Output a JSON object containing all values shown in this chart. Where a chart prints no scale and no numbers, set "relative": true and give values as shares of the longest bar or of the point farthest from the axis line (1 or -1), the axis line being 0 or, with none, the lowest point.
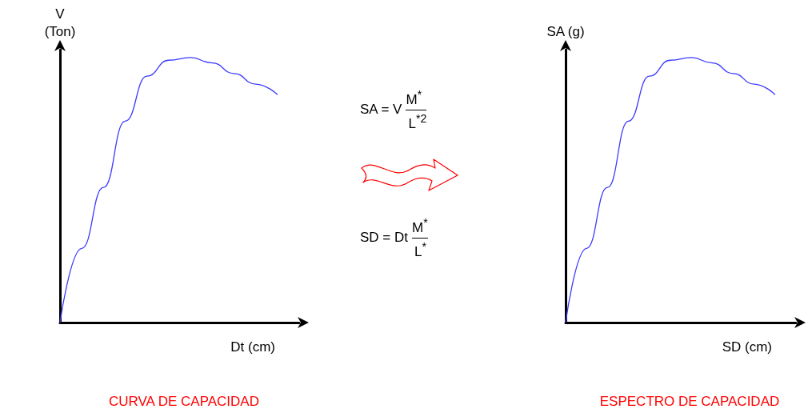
{
  "chart_data": [
    {
      "type": "line",
      "title": "CURVA DE CAPACIDAD",
      "xlabel": "Dt (cm)",
      "ylabel": "V\n(Ton)",
      "relative": true,
      "marker": "none",
      "categories": [
        null,
        null,
        null,
        null,
        null,
        null,
        null,
        null,
        null,
        null,
        null,
        null
      ],
      "series": [
        {
          "color": "#3b3bff",
          "values": [
            0,
            0.28,
            0.51,
            0.76,
            0.93,
            0.99,
            1,
            0.98,
            0.94,
            0.9,
            0.86,
            null
          ]
        }
      ]
    },
    {
      "type": "other",
      "annotations": [
        "SA = V",
        "M$^{*}$",
        "L$^{*2}$",
        "SD = Dt",
        "M$^{*}$",
        "L$^{*}$"
      ]
    },
    {
      "type": "line",
      "title": "ESPECTRO DE CAPACIDAD",
      "xlabel": "SD (cm)",
      "ylabel": "SA (g)",
      "relative": true,
      "marker": "none",
      "categories": [
        null,
        null,
        null,
        null,
        null,
        null,
        null,
        null,
        null,
        null,
        null,
        null
      ],
      "series": [
        {
          "color": "#3b3bff",
          "values": [
            0,
            0.28,
            0.51,
            0.76,
            0.93,
            0.99,
            1,
            0.98,
            0.94,
            0.9,
            0.86,
            null
          ]
        }
      ]
    }
  ]
}
